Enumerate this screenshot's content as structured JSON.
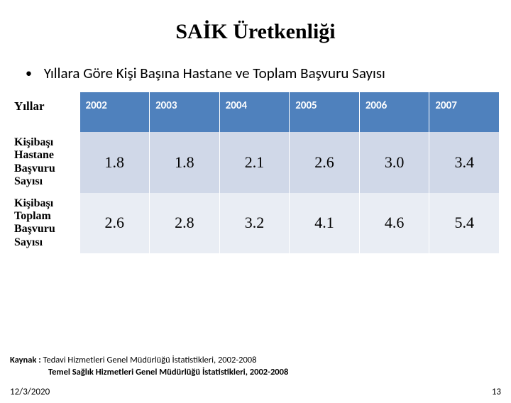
{
  "title": "SAİK Üretkenliği",
  "subtitle": "Yıllara Göre Kişi Başına Hastane ve Toplam Başvuru Sayısı",
  "table": {
    "corner_label": "Yıllar",
    "header_bg": "#4f81bd",
    "header_fg": "#ffffff",
    "band_light": "#d0d8e8",
    "band_dark": "#e9edf4",
    "years": [
      "2002",
      "2003",
      "2004",
      "2005",
      "2006",
      "2007"
    ],
    "rows": [
      {
        "label": "Kişibaşı Hastane Başvuru Sayısı",
        "values": [
          "1.8",
          "1.8",
          "2.1",
          "2.6",
          "3.0",
          "3.4"
        ]
      },
      {
        "label": "Kişibaşı Toplam Başvuru Sayısı",
        "values": [
          "2.6",
          "2.8",
          "3.2",
          "4.1",
          "4.6",
          "5.4"
        ]
      }
    ]
  },
  "source": {
    "prefix": "Kaynak :",
    "line1": "Tedavi Hizmetleri Genel Müdürlüğü İstatistikleri, 2002-2008",
    "line2": "Temel Sağlık Hizmetleri Genel Müdürlüğü İstatistikleri, 2002-2008"
  },
  "footer": {
    "date": "12/3/2020",
    "page": "13"
  }
}
